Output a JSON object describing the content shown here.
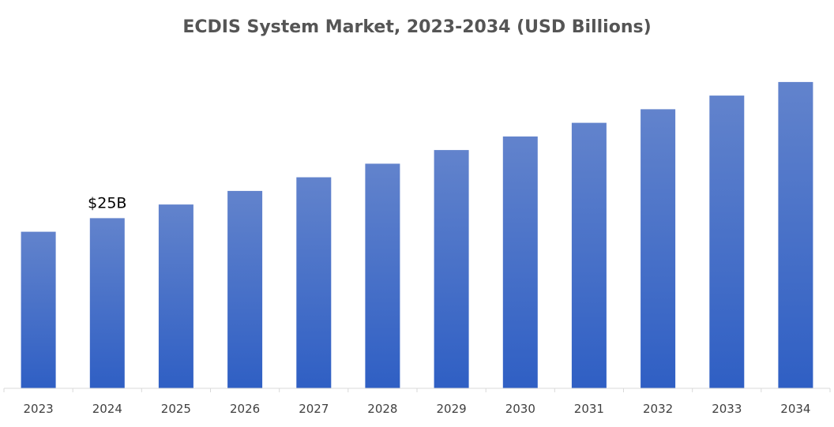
{
  "chart_data": {
    "type": "bar",
    "title": "ECDIS System Market, 2023-2034 (USD Billions)",
    "xlabel": "",
    "ylabel": "",
    "categories": [
      "2023",
      "2024",
      "2025",
      "2026",
      "2027",
      "2028",
      "2029",
      "2030",
      "2031",
      "2032",
      "2033",
      "2034"
    ],
    "values": [
      23.0,
      25.0,
      27.0,
      29.0,
      31.0,
      33.0,
      35.0,
      37.0,
      39.0,
      41.0,
      43.0,
      45.0
    ],
    "data_labels": [
      {
        "category": "2024",
        "text": "$25B"
      }
    ],
    "ylim": [
      0,
      48
    ],
    "grid": false,
    "legend": "none",
    "colors": {
      "bar_top": "#6283cc",
      "bar_bottom": "#2f5fc4",
      "axis": "#d9d9d9"
    }
  }
}
